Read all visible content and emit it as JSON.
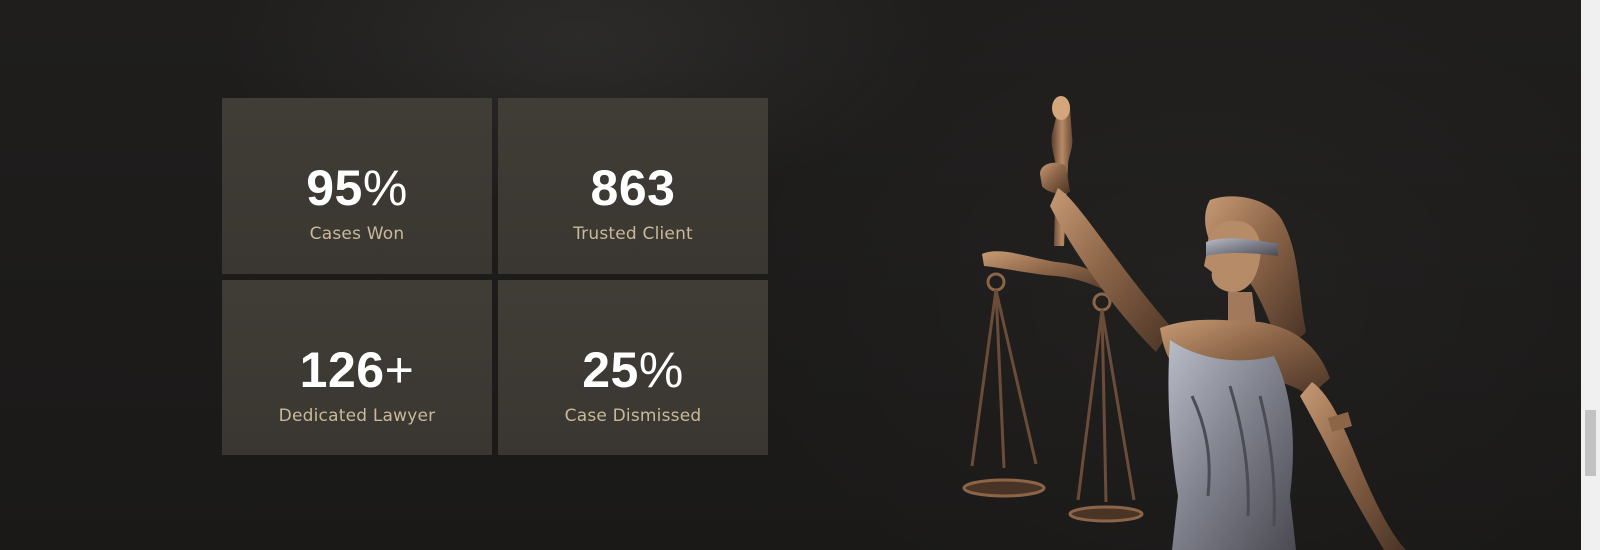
{
  "stats": [
    {
      "value": "95",
      "suffix": "%",
      "label": "Cases Won"
    },
    {
      "value": "863",
      "suffix": "",
      "label": "Trusted Client"
    },
    {
      "value": "126",
      "suffix": "+",
      "label": "Dedicated Lawyer"
    },
    {
      "value": "25",
      "suffix": "%",
      "label": "Case Dismissed"
    }
  ],
  "image": {
    "icon": "lady-justice-statue"
  },
  "colors": {
    "background": "#1c1b1a",
    "tile": "#3d3934",
    "number": "#ffffff",
    "label": "#c9b99a"
  }
}
